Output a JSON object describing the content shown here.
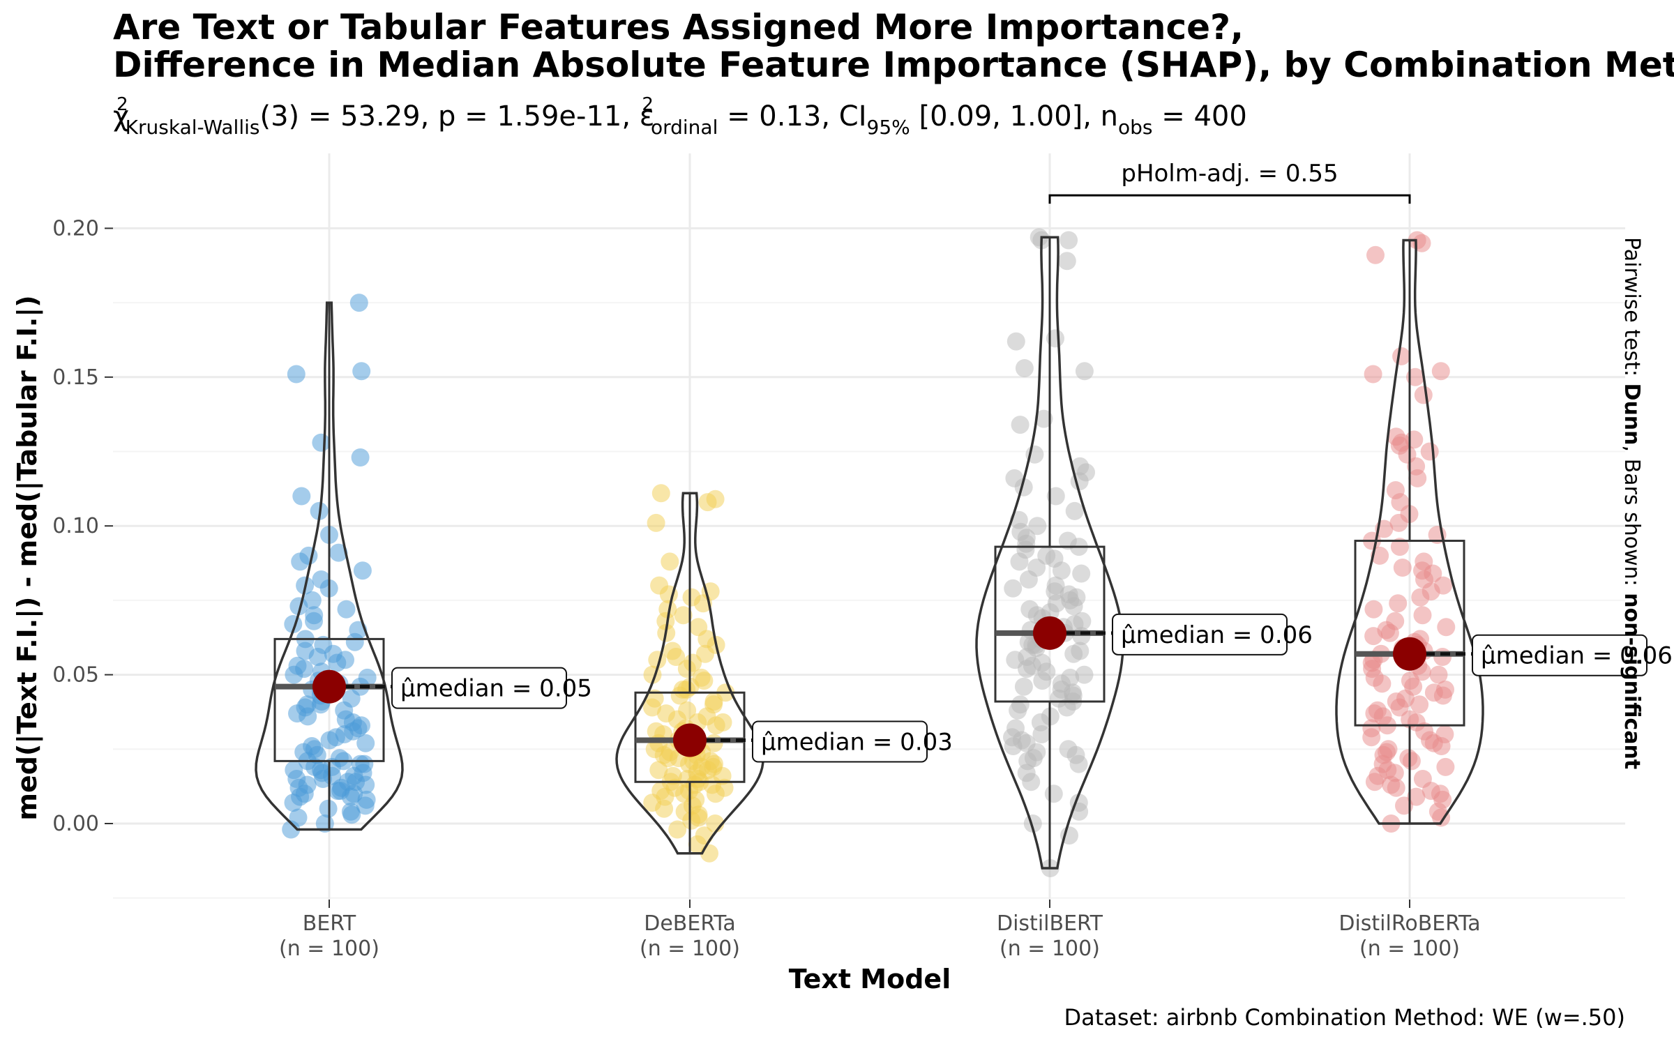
{
  "chart_data": {
    "type": "violin-box",
    "title_line1": "Are Text or Tabular Features Assigned More Importance?,",
    "title_line2": "Difference in Median Absolute Feature Importance (SHAP), by Combination Method",
    "subtitle": "χ²Kruskal-Wallis(3) = 53.29, p = 1.59e-11, ε²ordinal = 0.13, CI95% [0.09, 1.00], nobs = 400",
    "xlabel": "Text Model",
    "ylabel": "med(|Text F.I.|) - med(|Tabular F.I.|)",
    "ylim": [
      -0.025,
      0.215
    ],
    "yticks": [
      "0.00",
      "0.05",
      "0.10",
      "0.15",
      "0.20"
    ],
    "grid": true,
    "categories": [
      "BERT",
      "DeBERTa",
      "DistilBERT",
      "DistilRoBERTa"
    ],
    "n_labels": [
      "(n = 100)",
      "(n = 100)",
      "(n = 100)",
      "(n = 100)"
    ],
    "colors": [
      "#4a9ad8",
      "#f2cd52",
      "#b7b7b7",
      "#e8898a"
    ],
    "median_point_color": "#8b0000",
    "groups": [
      {
        "name": "BERT",
        "median": 0.046,
        "q1": 0.021,
        "q3": 0.062,
        "min": -0.002,
        "max": 0.175,
        "label": "μ̂median = 0.05",
        "points": [
          0.175,
          0.152,
          0.151,
          0.128,
          0.123,
          0.11,
          0.105,
          0.097,
          0.091,
          0.09,
          0.088,
          0.085,
          0.082,
          0.08,
          0.079,
          0.075,
          0.073,
          0.072,
          0.07,
          0.068,
          0.067,
          0.065,
          0.062,
          0.061,
          0.06,
          0.058,
          0.057,
          0.056,
          0.055,
          0.054,
          0.053,
          0.052,
          0.051,
          0.05,
          0.049,
          0.048,
          0.047,
          0.046,
          0.046,
          0.045,
          0.045,
          0.044,
          0.043,
          0.042,
          0.041,
          0.04,
          0.04,
          0.039,
          0.038,
          0.037,
          0.036,
          0.035,
          0.034,
          0.033,
          0.032,
          0.031,
          0.03,
          0.029,
          0.028,
          0.027,
          0.026,
          0.025,
          0.024,
          0.023,
          0.022,
          0.021,
          0.021,
          0.02,
          0.02,
          0.019,
          0.019,
          0.018,
          0.018,
          0.017,
          0.017,
          0.016,
          0.016,
          0.015,
          0.015,
          0.014,
          0.014,
          0.013,
          0.013,
          0.012,
          0.012,
          0.011,
          0.011,
          0.01,
          0.01,
          0.009,
          0.009,
          0.008,
          0.007,
          0.006,
          0.005,
          0.004,
          0.003,
          0.002,
          0.0,
          -0.002
        ]
      },
      {
        "name": "DeBERTa",
        "median": 0.028,
        "q1": 0.014,
        "q3": 0.044,
        "min": -0.01,
        "max": 0.111,
        "label": "μ̂median = 0.03",
        "points": [
          0.111,
          0.109,
          0.108,
          0.101,
          0.088,
          0.08,
          0.078,
          0.077,
          0.076,
          0.074,
          0.072,
          0.07,
          0.068,
          0.066,
          0.064,
          0.062,
          0.06,
          0.058,
          0.057,
          0.056,
          0.055,
          0.054,
          0.052,
          0.05,
          0.049,
          0.048,
          0.046,
          0.045,
          0.045,
          0.044,
          0.043,
          0.042,
          0.041,
          0.04,
          0.039,
          0.038,
          0.037,
          0.036,
          0.035,
          0.034,
          0.034,
          0.033,
          0.032,
          0.031,
          0.031,
          0.03,
          0.03,
          0.029,
          0.029,
          0.028,
          0.028,
          0.027,
          0.027,
          0.026,
          0.026,
          0.025,
          0.025,
          0.024,
          0.024,
          0.023,
          0.023,
          0.022,
          0.022,
          0.021,
          0.021,
          0.02,
          0.02,
          0.019,
          0.019,
          0.018,
          0.018,
          0.017,
          0.016,
          0.016,
          0.015,
          0.015,
          0.014,
          0.014,
          0.013,
          0.013,
          0.012,
          0.012,
          0.011,
          0.011,
          0.01,
          0.01,
          0.009,
          0.008,
          0.007,
          0.006,
          0.005,
          0.004,
          0.003,
          0.002,
          0.001,
          0.0,
          -0.002,
          -0.004,
          -0.007,
          -0.01
        ]
      },
      {
        "name": "DistilBERT",
        "median": 0.064,
        "q1": 0.041,
        "q3": 0.093,
        "min": -0.015,
        "max": 0.197,
        "label": "μ̂median = 0.06",
        "points": [
          0.197,
          0.196,
          0.196,
          0.189,
          0.163,
          0.162,
          0.153,
          0.152,
          0.136,
          0.134,
          0.124,
          0.12,
          0.118,
          0.116,
          0.115,
          0.113,
          0.11,
          0.105,
          0.102,
          0.1,
          0.098,
          0.096,
          0.095,
          0.094,
          0.093,
          0.092,
          0.09,
          0.089,
          0.088,
          0.086,
          0.085,
          0.084,
          0.082,
          0.08,
          0.079,
          0.078,
          0.077,
          0.076,
          0.075,
          0.074,
          0.073,
          0.072,
          0.071,
          0.07,
          0.069,
          0.068,
          0.067,
          0.066,
          0.065,
          0.064,
          0.064,
          0.063,
          0.062,
          0.061,
          0.06,
          0.06,
          0.059,
          0.058,
          0.057,
          0.056,
          0.055,
          0.054,
          0.053,
          0.052,
          0.051,
          0.05,
          0.049,
          0.048,
          0.047,
          0.046,
          0.045,
          0.044,
          0.043,
          0.042,
          0.041,
          0.04,
          0.039,
          0.038,
          0.036,
          0.034,
          0.032,
          0.03,
          0.029,
          0.028,
          0.027,
          0.026,
          0.025,
          0.024,
          0.023,
          0.022,
          0.021,
          0.02,
          0.017,
          0.014,
          0.01,
          0.007,
          0.004,
          0.0,
          -0.004,
          -0.015
        ]
      },
      {
        "name": "DistilRoBERTa",
        "median": 0.057,
        "q1": 0.033,
        "q3": 0.095,
        "min": 0.0,
        "max": 0.196,
        "label": "μ̂median = 0.06",
        "points": [
          0.196,
          0.195,
          0.191,
          0.157,
          0.152,
          0.151,
          0.15,
          0.144,
          0.13,
          0.129,
          0.128,
          0.127,
          0.125,
          0.124,
          0.12,
          0.116,
          0.112,
          0.108,
          0.104,
          0.101,
          0.099,
          0.097,
          0.095,
          0.093,
          0.09,
          0.088,
          0.086,
          0.085,
          0.084,
          0.082,
          0.08,
          0.078,
          0.076,
          0.074,
          0.072,
          0.07,
          0.068,
          0.066,
          0.065,
          0.064,
          0.063,
          0.062,
          0.061,
          0.06,
          0.059,
          0.058,
          0.057,
          0.056,
          0.055,
          0.054,
          0.053,
          0.052,
          0.051,
          0.05,
          0.049,
          0.048,
          0.047,
          0.046,
          0.045,
          0.044,
          0.043,
          0.042,
          0.041,
          0.04,
          0.039,
          0.038,
          0.037,
          0.036,
          0.035,
          0.034,
          0.033,
          0.032,
          0.031,
          0.03,
          0.029,
          0.028,
          0.027,
          0.026,
          0.025,
          0.024,
          0.023,
          0.022,
          0.021,
          0.02,
          0.019,
          0.018,
          0.017,
          0.016,
          0.015,
          0.014,
          0.013,
          0.012,
          0.011,
          0.01,
          0.009,
          0.008,
          0.006,
          0.004,
          0.002,
          0.0
        ]
      }
    ],
    "pairwise": {
      "from": 2,
      "to": 3,
      "label": "pHolm-adj. = 0.55",
      "y": 0.212
    },
    "side_label": {
      "prefix": "Pairwise test: ",
      "test": "Dunn",
      "middle": ", Bars shown: ",
      "bars": "non-significant"
    },
    "caption": "Dataset:  airbnb Combination Method:  WE (w=.50)"
  }
}
